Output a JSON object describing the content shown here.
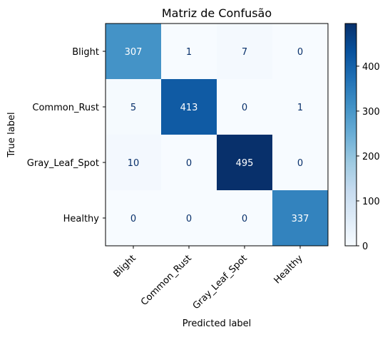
{
  "chart_data": {
    "type": "heatmap",
    "title": "Matriz de Confusão",
    "xlabel": "Predicted label",
    "ylabel": "True label",
    "x_categories": [
      "Blight",
      "Common_Rust",
      "Gray_Leaf_Spot",
      "Healthy"
    ],
    "y_categories": [
      "Blight",
      "Common_Rust",
      "Gray_Leaf_Spot",
      "Healthy"
    ],
    "matrix": [
      [
        307,
        1,
        7,
        0
      ],
      [
        5,
        413,
        0,
        1
      ],
      [
        10,
        0,
        495,
        0
      ],
      [
        0,
        0,
        0,
        337
      ]
    ],
    "colormap": "Blues",
    "vmin": 0,
    "vmax": 495,
    "colorbar_ticks": [
      0,
      100,
      200,
      300,
      400
    ]
  }
}
